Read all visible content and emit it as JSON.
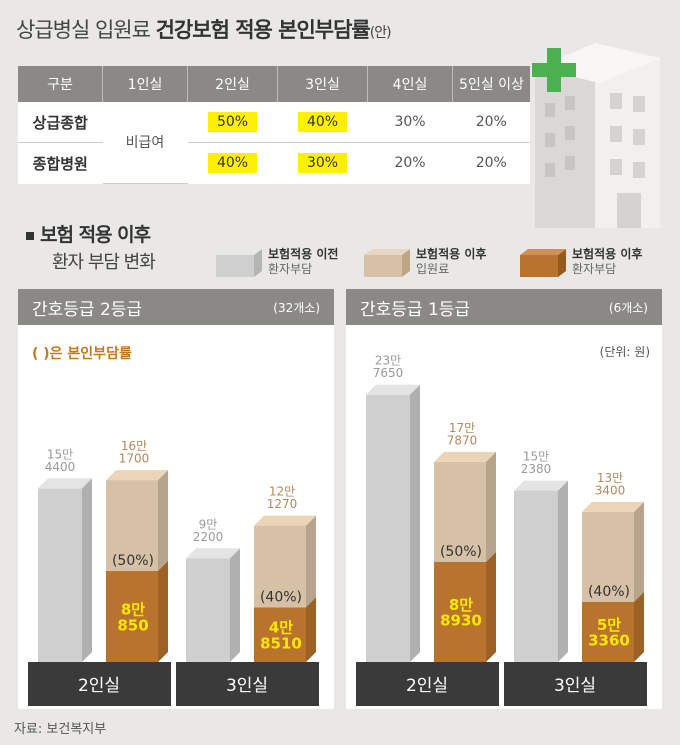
{
  "title": {
    "main": "상급병실 입원료",
    "bold": "건강보험 적용 본인부담률",
    "suffix": "(안)"
  },
  "rate_table": {
    "headers": [
      "구분",
      "1인실",
      "2인실",
      "3인실",
      "4인실",
      "5인실 이상"
    ],
    "rows": [
      {
        "label": "상급종합",
        "cells": [
          "50%",
          "40%",
          "30%",
          "20%"
        ]
      },
      {
        "label": "종합병원",
        "cells": [
          "40%",
          "30%",
          "20%",
          "20%"
        ]
      }
    ],
    "non_covered": "비급여"
  },
  "section": {
    "title": "보험 적용 이후",
    "subtitle": "환자 부담 변화"
  },
  "legend": [
    {
      "line1": "보험적용 이전",
      "line2": "환자부담",
      "color": "#cfcfcf"
    },
    {
      "line1": "보험적용 이후",
      "line2": "입원료",
      "color": "#d6c1a6"
    },
    {
      "line1": "보험적용 이후",
      "line2": "환자부담",
      "color": "#b8732c"
    }
  ],
  "panels": [
    {
      "title": "간호등급 2등급",
      "count": "(32개소)",
      "note": "( )은 본인부담률",
      "unit": ""
    },
    {
      "title": "간호등급 1등급",
      "count": "(6개소)",
      "note": "",
      "unit": "(단위: 원)"
    }
  ],
  "source": "자료: 보건복지부",
  "chart_data": [
    {
      "type": "bar",
      "title": "간호등급 2등급",
      "categories": [
        "2인실",
        "3인실"
      ],
      "series": [
        {
          "name": "보험적용 이전 환자부담",
          "values": [
            154400,
            92200
          ],
          "labels": [
            "15만\n4400",
            "9만\n2200"
          ]
        },
        {
          "name": "보험적용 이후 입원료",
          "values": [
            161700,
            121270
          ],
          "labels": [
            "16만\n1700",
            "12만\n1270"
          ]
        },
        {
          "name": "보험적용 이후 환자부담",
          "values": [
            80850,
            48510
          ],
          "labels": [
            "8만\n850",
            "4만\n8510"
          ],
          "rates": [
            "(50%)",
            "(40%)"
          ]
        }
      ]
    },
    {
      "type": "bar",
      "title": "간호등급 1등급",
      "categories": [
        "2인실",
        "3인실"
      ],
      "series": [
        {
          "name": "보험적용 이전 환자부담",
          "values": [
            237650,
            152380
          ],
          "labels": [
            "23만\n7650",
            "15만\n2380"
          ]
        },
        {
          "name": "보험적용 이후 입원료",
          "values": [
            177870,
            133400
          ],
          "labels": [
            "17만\n7870",
            "13만\n3400"
          ]
        },
        {
          "name": "보험적용 이후 환자부담",
          "values": [
            88930,
            53360
          ],
          "labels": [
            "8만\n8930",
            "5만\n3360"
          ],
          "rates": [
            "(50%)",
            "(40%)"
          ]
        }
      ]
    }
  ]
}
